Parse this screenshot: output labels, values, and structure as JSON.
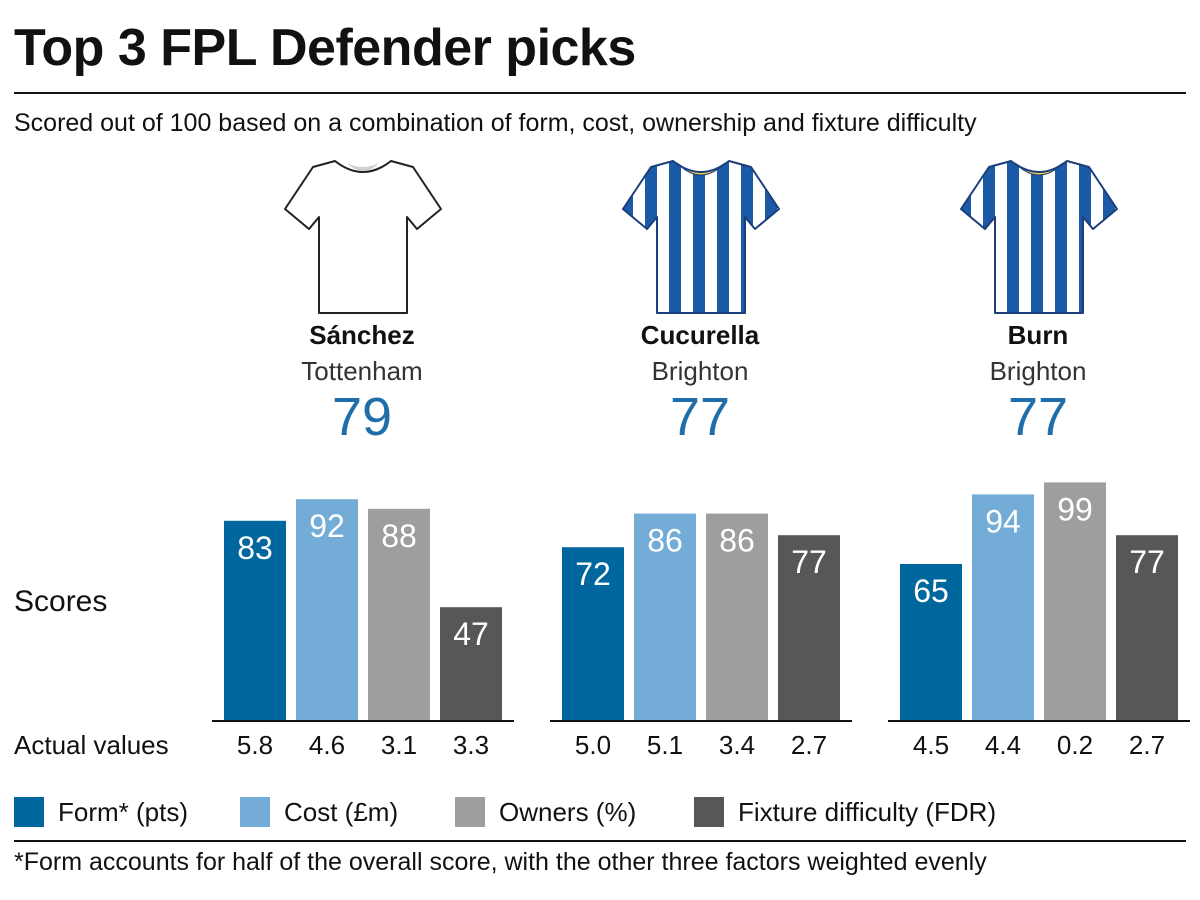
{
  "header": {
    "title": "Top 3 FPL Defender picks",
    "subtitle": "Scored out of 100 based on a combination of form, cost, ownership and fixture difficulty"
  },
  "labels": {
    "scores": "Scores",
    "actual_values": "Actual values"
  },
  "players": [
    {
      "name": "Sánchez",
      "team": "Tottenham",
      "score": "79",
      "shirt_icon": "white-shirt-icon"
    },
    {
      "name": "Cucurella",
      "team": "Brighton",
      "score": "77",
      "shirt_icon": "blue-white-striped-shirt-icon"
    },
    {
      "name": "Burn",
      "team": "Brighton",
      "score": "77",
      "shirt_icon": "blue-white-striped-shirt-icon"
    }
  ],
  "colors": {
    "form": "#00669e",
    "cost": "#74acd8",
    "owners": "#9e9e9e",
    "fixture": "#575757",
    "score_text": "#1f6eaa"
  },
  "legend": [
    {
      "label": "Form* (pts)",
      "color": "#00669e"
    },
    {
      "label": "Cost (£m)",
      "color": "#74acd8"
    },
    {
      "label": "Owners (%)",
      "color": "#9e9e9e"
    },
    {
      "label": "Fixture difficulty (FDR)",
      "color": "#575757"
    }
  ],
  "footnote": "*Form accounts for half of the overall score, with the other three factors weighted evenly",
  "chart_data": [
    {
      "type": "bar",
      "title": "Sánchez",
      "categories": [
        "Form* (pts)",
        "Cost (£m)",
        "Owners (%)",
        "Fixture difficulty (FDR)"
      ],
      "values": [
        83,
        92,
        88,
        47
      ],
      "actual_values": [
        "5.8",
        "4.6",
        "3.1",
        "3.3"
      ],
      "ylim": [
        0,
        100
      ]
    },
    {
      "type": "bar",
      "title": "Cucurella",
      "categories": [
        "Form* (pts)",
        "Cost (£m)",
        "Owners (%)",
        "Fixture difficulty (FDR)"
      ],
      "values": [
        72,
        86,
        86,
        77
      ],
      "actual_values": [
        "5.0",
        "5.1",
        "3.4",
        "2.7"
      ],
      "ylim": [
        0,
        100
      ]
    },
    {
      "type": "bar",
      "title": "Burn",
      "categories": [
        "Form* (pts)",
        "Cost (£m)",
        "Owners (%)",
        "Fixture difficulty (FDR)"
      ],
      "values": [
        65,
        94,
        99,
        77
      ],
      "actual_values": [
        "4.5",
        "4.4",
        "0.2",
        "2.7"
      ],
      "ylim": [
        0,
        100
      ]
    }
  ]
}
